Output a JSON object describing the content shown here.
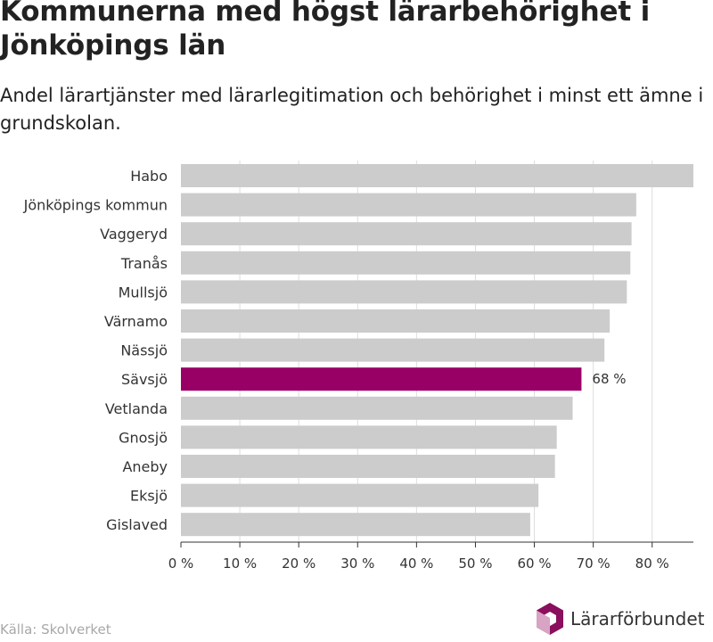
{
  "header": {
    "title": "Kommunerna med högst lärarbehörighet i Jönköpings län",
    "subtitle": "Andel lärartjänster med lärarlegitimation och behörighet i minst ett ämne i grundskolan."
  },
  "footer": {
    "source": "Källa: Skolverket",
    "brand": "Lärarförbundet"
  },
  "colors": {
    "bar": "#cccccc",
    "highlight": "#990066",
    "grid": "#dddddd",
    "axis": "#333333",
    "logo_dark": "#8a0f5c",
    "logo_light": "#d9a3c4"
  },
  "chart_data": {
    "type": "bar",
    "orientation": "horizontal",
    "categories": [
      "Habo",
      "Jönköpings kommun",
      "Vaggeryd",
      "Tranås",
      "Mullsjö",
      "Värnamo",
      "Nässjö",
      "Sävsjö",
      "Vetlanda",
      "Gnosjö",
      "Aneby",
      "Eksjö",
      "Gislaved"
    ],
    "values": [
      87,
      77.3,
      76.5,
      76.3,
      75.7,
      72.8,
      71.9,
      68,
      66.5,
      63.8,
      63.5,
      60.7,
      59.3
    ],
    "highlight_category": "Sävsjö",
    "data_labels": [
      {
        "category": "Sävsjö",
        "text": "68 %"
      }
    ],
    "x_ticks": [
      0,
      10,
      20,
      30,
      40,
      50,
      60,
      70,
      80
    ],
    "x_tick_labels": [
      "0 %",
      "10 %",
      "20 %",
      "30 %",
      "40 %",
      "50 %",
      "60 %",
      "70 %",
      "80 %"
    ],
    "xlim": [
      0,
      87
    ],
    "grid": true
  }
}
